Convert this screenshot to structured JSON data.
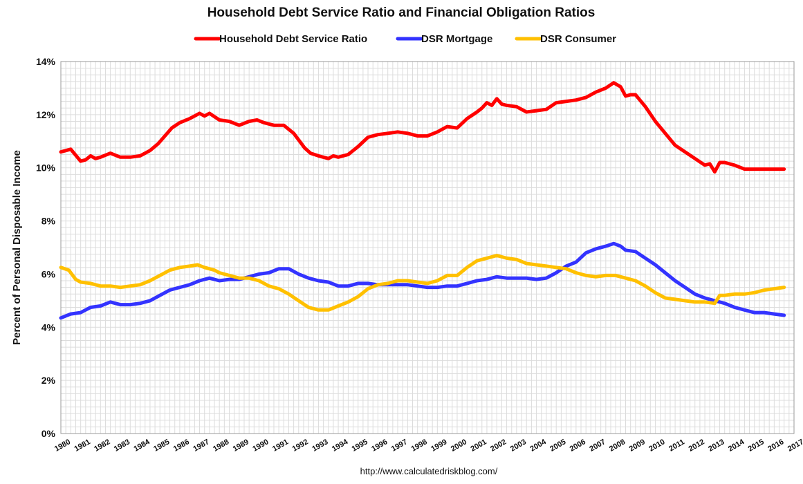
{
  "chart_data": {
    "type": "line",
    "title": "Household Debt Service Ratio and Financial Obligation Ratios",
    "ylabel": "Percent of Personal Disposable Income",
    "xlabel": "",
    "source": "http://www.calculatedriskblog.com/",
    "ylim": [
      0,
      14
    ],
    "xlim": [
      1980,
      2017
    ],
    "grid": true,
    "legend_position": "top",
    "y_ticks": [
      "0%",
      "2%",
      "4%",
      "6%",
      "8%",
      "10%",
      "12%",
      "14%"
    ],
    "x_ticks": [
      "1980",
      "1981",
      "1982",
      "1983",
      "1984",
      "1985",
      "1986",
      "1987",
      "1988",
      "1989",
      "1990",
      "1991",
      "1992",
      "1993",
      "1994",
      "1995",
      "1996",
      "1997",
      "1998",
      "1999",
      "2000",
      "2001",
      "2002",
      "2003",
      "2004",
      "2005",
      "2006",
      "2007",
      "2008",
      "2009",
      "2010",
      "2011",
      "2012",
      "2013",
      "2014",
      "2015",
      "2016",
      "2017"
    ],
    "series": [
      {
        "name": "Household Debt Service Ratio",
        "color": "#ff0000",
        "points": [
          [
            1980.0,
            10.6
          ],
          [
            1980.5,
            10.7
          ],
          [
            1981.0,
            10.25
          ],
          [
            1981.25,
            10.3
          ],
          [
            1981.5,
            10.45
          ],
          [
            1981.75,
            10.35
          ],
          [
            1982.0,
            10.4
          ],
          [
            1982.5,
            10.55
          ],
          [
            1983.0,
            10.4
          ],
          [
            1983.5,
            10.4
          ],
          [
            1984.0,
            10.45
          ],
          [
            1984.5,
            10.65
          ],
          [
            1984.9,
            10.9
          ],
          [
            1985.25,
            11.2
          ],
          [
            1985.6,
            11.5
          ],
          [
            1986.0,
            11.7
          ],
          [
            1986.5,
            11.85
          ],
          [
            1987.0,
            12.05
          ],
          [
            1987.25,
            11.95
          ],
          [
            1987.5,
            12.05
          ],
          [
            1988.0,
            11.8
          ],
          [
            1988.5,
            11.75
          ],
          [
            1989.0,
            11.6
          ],
          [
            1989.5,
            11.75
          ],
          [
            1989.9,
            11.8
          ],
          [
            1990.25,
            11.7
          ],
          [
            1990.75,
            11.6
          ],
          [
            1991.25,
            11.6
          ],
          [
            1991.75,
            11.3
          ],
          [
            1992.0,
            11.05
          ],
          [
            1992.3,
            10.75
          ],
          [
            1992.6,
            10.55
          ],
          [
            1993.0,
            10.45
          ],
          [
            1993.5,
            10.35
          ],
          [
            1993.75,
            10.45
          ],
          [
            1994.0,
            10.4
          ],
          [
            1994.5,
            10.5
          ],
          [
            1995.0,
            10.8
          ],
          [
            1995.5,
            11.15
          ],
          [
            1996.0,
            11.25
          ],
          [
            1996.5,
            11.3
          ],
          [
            1997.0,
            11.35
          ],
          [
            1997.5,
            11.3
          ],
          [
            1998.0,
            11.2
          ],
          [
            1998.5,
            11.2
          ],
          [
            1999.0,
            11.35
          ],
          [
            1999.5,
            11.55
          ],
          [
            2000.0,
            11.5
          ],
          [
            2000.5,
            11.85
          ],
          [
            2001.0,
            12.1
          ],
          [
            2001.25,
            12.25
          ],
          [
            2001.5,
            12.45
          ],
          [
            2001.75,
            12.35
          ],
          [
            2002.0,
            12.6
          ],
          [
            2002.25,
            12.4
          ],
          [
            2002.5,
            12.35
          ],
          [
            2003.0,
            12.3
          ],
          [
            2003.5,
            12.1
          ],
          [
            2004.0,
            12.15
          ],
          [
            2004.5,
            12.2
          ],
          [
            2005.0,
            12.45
          ],
          [
            2005.5,
            12.5
          ],
          [
            2006.0,
            12.55
          ],
          [
            2006.5,
            12.65
          ],
          [
            2007.0,
            12.85
          ],
          [
            2007.5,
            13.0
          ],
          [
            2007.9,
            13.2
          ],
          [
            2008.25,
            13.05
          ],
          [
            2008.5,
            12.7
          ],
          [
            2008.75,
            12.75
          ],
          [
            2009.0,
            12.75
          ],
          [
            2009.5,
            12.3
          ],
          [
            2010.0,
            11.75
          ],
          [
            2010.5,
            11.3
          ],
          [
            2011.0,
            10.85
          ],
          [
            2011.5,
            10.6
          ],
          [
            2012.0,
            10.35
          ],
          [
            2012.5,
            10.1
          ],
          [
            2012.75,
            10.15
          ],
          [
            2013.0,
            9.85
          ],
          [
            2013.25,
            10.2
          ],
          [
            2013.5,
            10.2
          ],
          [
            2014.0,
            10.1
          ],
          [
            2014.5,
            9.95
          ],
          [
            2015.0,
            9.95
          ],
          [
            2015.5,
            9.95
          ],
          [
            2016.0,
            9.95
          ],
          [
            2016.5,
            9.95
          ]
        ]
      },
      {
        "name": "DSR Mortgage",
        "color": "#3333ff",
        "points": [
          [
            1980.0,
            4.35
          ],
          [
            1980.5,
            4.5
          ],
          [
            1981.0,
            4.55
          ],
          [
            1981.5,
            4.75
          ],
          [
            1982.0,
            4.8
          ],
          [
            1982.5,
            4.95
          ],
          [
            1983.0,
            4.85
          ],
          [
            1983.5,
            4.85
          ],
          [
            1984.0,
            4.9
          ],
          [
            1984.5,
            5.0
          ],
          [
            1985.0,
            5.2
          ],
          [
            1985.5,
            5.4
          ],
          [
            1986.0,
            5.5
          ],
          [
            1986.5,
            5.6
          ],
          [
            1987.0,
            5.75
          ],
          [
            1987.5,
            5.85
          ],
          [
            1988.0,
            5.75
          ],
          [
            1988.5,
            5.8
          ],
          [
            1989.0,
            5.8
          ],
          [
            1989.5,
            5.9
          ],
          [
            1990.0,
            6.0
          ],
          [
            1990.5,
            6.05
          ],
          [
            1991.0,
            6.2
          ],
          [
            1991.5,
            6.2
          ],
          [
            1992.0,
            6.0
          ],
          [
            1992.5,
            5.85
          ],
          [
            1993.0,
            5.75
          ],
          [
            1993.5,
            5.7
          ],
          [
            1994.0,
            5.55
          ],
          [
            1994.5,
            5.55
          ],
          [
            1995.0,
            5.65
          ],
          [
            1995.5,
            5.65
          ],
          [
            1996.0,
            5.6
          ],
          [
            1996.5,
            5.6
          ],
          [
            1997.0,
            5.6
          ],
          [
            1997.5,
            5.6
          ],
          [
            1998.0,
            5.55
          ],
          [
            1998.5,
            5.5
          ],
          [
            1999.0,
            5.5
          ],
          [
            1999.5,
            5.55
          ],
          [
            2000.0,
            5.55
          ],
          [
            2000.5,
            5.65
          ],
          [
            2001.0,
            5.75
          ],
          [
            2001.5,
            5.8
          ],
          [
            2002.0,
            5.9
          ],
          [
            2002.5,
            5.85
          ],
          [
            2003.0,
            5.85
          ],
          [
            2003.5,
            5.85
          ],
          [
            2004.0,
            5.8
          ],
          [
            2004.5,
            5.85
          ],
          [
            2005.0,
            6.05
          ],
          [
            2005.5,
            6.3
          ],
          [
            2006.0,
            6.45
          ],
          [
            2006.5,
            6.8
          ],
          [
            2007.0,
            6.95
          ],
          [
            2007.5,
            7.05
          ],
          [
            2007.9,
            7.15
          ],
          [
            2008.25,
            7.05
          ],
          [
            2008.5,
            6.9
          ],
          [
            2009.0,
            6.85
          ],
          [
            2009.5,
            6.6
          ],
          [
            2010.0,
            6.35
          ],
          [
            2010.5,
            6.05
          ],
          [
            2011.0,
            5.75
          ],
          [
            2011.5,
            5.5
          ],
          [
            2012.0,
            5.25
          ],
          [
            2012.5,
            5.1
          ],
          [
            2013.0,
            5.0
          ],
          [
            2013.5,
            4.9
          ],
          [
            2014.0,
            4.75
          ],
          [
            2014.5,
            4.65
          ],
          [
            2015.0,
            4.55
          ],
          [
            2015.5,
            4.55
          ],
          [
            2016.0,
            4.5
          ],
          [
            2016.5,
            4.45
          ]
        ]
      },
      {
        "name": "DSR Consumer",
        "color": "#ffc000",
        "points": [
          [
            1980.0,
            6.25
          ],
          [
            1980.4,
            6.15
          ],
          [
            1980.75,
            5.8
          ],
          [
            1981.0,
            5.7
          ],
          [
            1981.5,
            5.65
          ],
          [
            1982.0,
            5.55
          ],
          [
            1982.5,
            5.55
          ],
          [
            1983.0,
            5.5
          ],
          [
            1983.5,
            5.55
          ],
          [
            1984.0,
            5.6
          ],
          [
            1984.5,
            5.75
          ],
          [
            1985.0,
            5.95
          ],
          [
            1985.5,
            6.15
          ],
          [
            1986.0,
            6.25
          ],
          [
            1986.5,
            6.3
          ],
          [
            1986.9,
            6.35
          ],
          [
            1987.25,
            6.25
          ],
          [
            1987.75,
            6.15
          ],
          [
            1988.0,
            6.05
          ],
          [
            1988.5,
            5.95
          ],
          [
            1989.0,
            5.85
          ],
          [
            1989.5,
            5.85
          ],
          [
            1990.0,
            5.75
          ],
          [
            1990.5,
            5.55
          ],
          [
            1991.0,
            5.45
          ],
          [
            1991.5,
            5.25
          ],
          [
            1992.0,
            5.0
          ],
          [
            1992.5,
            4.75
          ],
          [
            1993.0,
            4.65
          ],
          [
            1993.5,
            4.65
          ],
          [
            1994.0,
            4.8
          ],
          [
            1994.5,
            4.95
          ],
          [
            1995.0,
            5.15
          ],
          [
            1995.5,
            5.45
          ],
          [
            1996.0,
            5.6
          ],
          [
            1996.5,
            5.65
          ],
          [
            1997.0,
            5.75
          ],
          [
            1997.5,
            5.75
          ],
          [
            1998.0,
            5.7
          ],
          [
            1998.5,
            5.65
          ],
          [
            1999.0,
            5.75
          ],
          [
            1999.5,
            5.95
          ],
          [
            2000.0,
            5.95
          ],
          [
            2000.5,
            6.25
          ],
          [
            2001.0,
            6.5
          ],
          [
            2001.5,
            6.6
          ],
          [
            2002.0,
            6.7
          ],
          [
            2002.5,
            6.6
          ],
          [
            2003.0,
            6.55
          ],
          [
            2003.5,
            6.4
          ],
          [
            2004.0,
            6.35
          ],
          [
            2004.5,
            6.3
          ],
          [
            2005.0,
            6.25
          ],
          [
            2005.5,
            6.2
          ],
          [
            2006.0,
            6.05
          ],
          [
            2006.5,
            5.95
          ],
          [
            2007.0,
            5.9
          ],
          [
            2007.5,
            5.95
          ],
          [
            2008.0,
            5.95
          ],
          [
            2008.5,
            5.85
          ],
          [
            2009.0,
            5.75
          ],
          [
            2009.5,
            5.55
          ],
          [
            2010.0,
            5.3
          ],
          [
            2010.5,
            5.1
          ],
          [
            2011.0,
            5.05
          ],
          [
            2011.5,
            5.0
          ],
          [
            2012.0,
            4.95
          ],
          [
            2012.5,
            4.95
          ],
          [
            2013.0,
            4.9
          ],
          [
            2013.25,
            5.2
          ],
          [
            2013.5,
            5.2
          ],
          [
            2014.0,
            5.25
          ],
          [
            2014.5,
            5.25
          ],
          [
            2015.0,
            5.3
          ],
          [
            2015.5,
            5.4
          ],
          [
            2016.0,
            5.45
          ],
          [
            2016.5,
            5.5
          ]
        ]
      }
    ]
  }
}
